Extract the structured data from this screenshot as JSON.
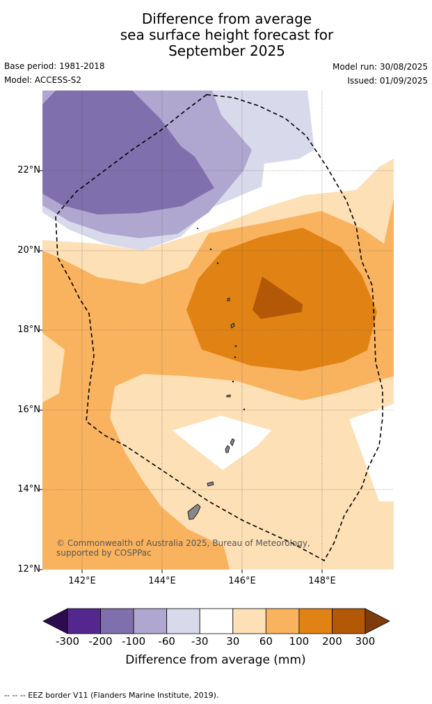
{
  "title_lines": [
    "Difference from average",
    "sea surface height forecast for",
    "September 2025"
  ],
  "meta": {
    "base_period": "Base period: 1981-2018",
    "model": "Model: ACCESS-S2",
    "model_run": "Model run: 30/08/2025",
    "issued": "Issued: 01/09/2025"
  },
  "lat_labels": [
    "22°N",
    "20°N",
    "18°N",
    "16°N",
    "14°N",
    "12°N"
  ],
  "lon_labels": [
    "142°E",
    "144°E",
    "146°E",
    "148°E"
  ],
  "copyright": "© Commonwealth of Australia 2025, Bureau of Meteorology, supported by COSPPac",
  "colorbar": {
    "ticks": [
      "-300",
      "-200",
      "-100",
      "-60",
      "-30",
      "30",
      "60",
      "100",
      "200",
      "300"
    ],
    "label": "Difference from average (mm)",
    "colors": [
      "#2d0b4f",
      "#54278f",
      "#7f6fac",
      "#afa7d0",
      "#d9d9ec",
      "#ffffff",
      "#fde0b5",
      "#f9b35f",
      "#e08214",
      "#b35806",
      "#7f3b08"
    ]
  },
  "footer": "-- -- -- EEZ border V11 (Flanders Marine Institute, 2019)."
}
